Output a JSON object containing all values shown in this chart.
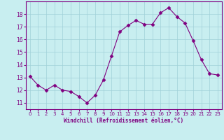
{
  "x": [
    0,
    1,
    2,
    3,
    4,
    5,
    6,
    7,
    8,
    9,
    10,
    11,
    12,
    13,
    14,
    15,
    16,
    17,
    18,
    19,
    20,
    21,
    22,
    23
  ],
  "y": [
    13.1,
    12.4,
    12.0,
    12.4,
    12.0,
    11.9,
    11.5,
    11.0,
    11.6,
    12.8,
    14.7,
    16.6,
    17.1,
    17.5,
    17.2,
    17.2,
    18.1,
    18.5,
    17.8,
    17.3,
    15.9,
    14.4,
    13.3,
    13.2
  ],
  "line_color": "#800080",
  "marker": "D",
  "marker_size": 2.5,
  "bg_color": "#c8eef0",
  "grid_color": "#a0d0d8",
  "xlabel": "Windchill (Refroidissement éolien,°C)",
  "xlabel_color": "#800080",
  "tick_color": "#800080",
  "ylim": [
    10.5,
    19.0
  ],
  "yticks": [
    11,
    12,
    13,
    14,
    15,
    16,
    17,
    18
  ],
  "xlim": [
    -0.5,
    23.5
  ],
  "xticks": [
    0,
    1,
    2,
    3,
    4,
    5,
    6,
    7,
    8,
    9,
    10,
    11,
    12,
    13,
    14,
    15,
    16,
    17,
    18,
    19,
    20,
    21,
    22,
    23
  ]
}
